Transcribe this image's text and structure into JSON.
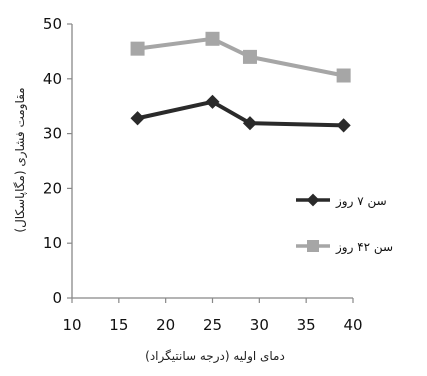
{
  "chart_data": {
    "type": "line",
    "xlabel": "دمای اولیه (درجه سانتیگراد)",
    "ylabel": "مقاومت فشاری (مگاپاسکال)",
    "xlim": [
      10,
      40
    ],
    "ylim": [
      0,
      50
    ],
    "x_ticks": [
      10,
      15,
      20,
      25,
      30,
      35,
      40
    ],
    "y_ticks": [
      0,
      10,
      20,
      30,
      40,
      50
    ],
    "grid": false,
    "legend_position": "right",
    "series": [
      {
        "name": "سن ۷ روز",
        "color": "#2a2a2a",
        "marker": "diamond",
        "points": [
          [
            17,
            32.8
          ],
          [
            25,
            35.8
          ],
          [
            29,
            31.9
          ],
          [
            39,
            31.5
          ]
        ]
      },
      {
        "name": "سن ۴۲ روز",
        "color": "#a6a6a6",
        "marker": "square",
        "points": [
          [
            17,
            45.5
          ],
          [
            25,
            47.3
          ],
          [
            29,
            44.0
          ],
          [
            39,
            40.6
          ]
        ]
      }
    ]
  }
}
